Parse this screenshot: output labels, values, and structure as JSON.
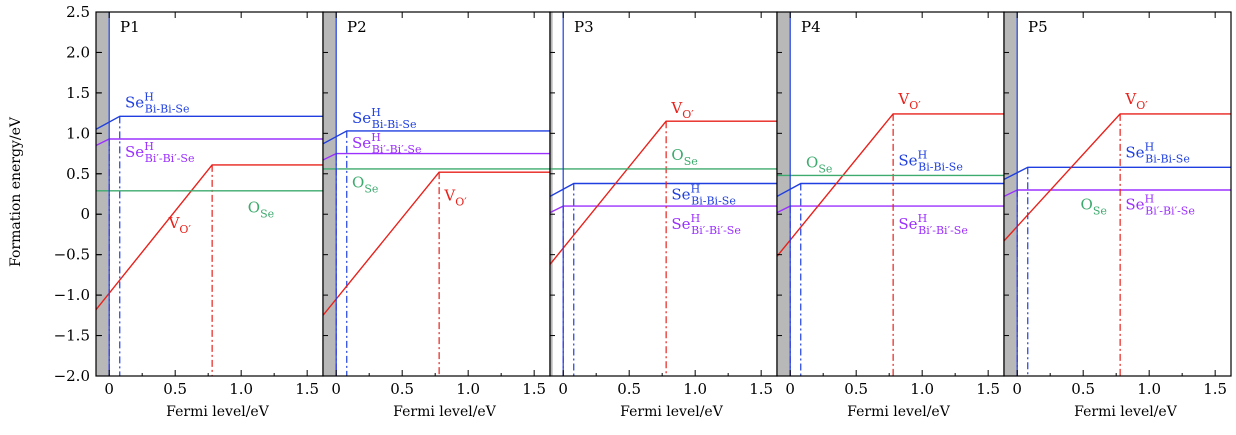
{
  "figure": {
    "ylabel": "Formation energy/eV",
    "xlabel": "Fermi level/eV"
  },
  "colors": {
    "Se_BiBiSe": "#1f3fe0",
    "Se_BiBi": "#9b30ff",
    "V_O": "#e8211b",
    "O_Se": "#3daa6e",
    "gap_shade": "#b8b8b8"
  },
  "chart_data": [
    {
      "type": "line",
      "panel": "P1",
      "xlim": [
        -0.1,
        1.62
      ],
      "ylim": [
        -2.0,
        2.5
      ],
      "xticks": [
        0,
        0.5,
        1.0,
        1.5
      ],
      "xtick_labels": [
        "0",
        "0.5",
        "1.0",
        "1.5"
      ],
      "yticks": [
        -2.0,
        -1.5,
        -1.0,
        -0.5,
        0,
        0.5,
        1.0,
        1.5,
        2.0,
        2.5
      ],
      "ytick_labels": [
        "−2.0",
        "−1.5",
        "−1.0",
        "−0.5",
        "0",
        "0.5",
        "1.0",
        "1.5",
        "2.0",
        "2.5"
      ],
      "shaded_band": [
        -0.1,
        0.0
      ],
      "series": [
        {
          "key": "Se_BiBiSe",
          "points": [
            [
              -0.1,
              1.05
            ],
            [
              0.08,
              1.21
            ],
            [
              1.62,
              1.21
            ]
          ],
          "transition": 0.08
        },
        {
          "key": "Se_BiBi",
          "points": [
            [
              -0.1,
              0.85
            ],
            [
              0.0,
              0.93
            ],
            [
              1.62,
              0.93
            ]
          ],
          "transition": 0.0
        },
        {
          "key": "V_O",
          "points": [
            [
              -0.1,
              -1.18
            ],
            [
              0.78,
              0.61
            ],
            [
              1.62,
              0.61
            ]
          ],
          "transition": 0.78
        },
        {
          "key": "O_Se",
          "points": [
            [
              -0.1,
              0.29
            ],
            [
              1.62,
              0.29
            ]
          ]
        }
      ],
      "labels": [
        {
          "text": "Se",
          "sup": "H",
          "sub": "Bi-Bi-Se",
          "key": "Se_BiBiSe",
          "at": [
            0.12,
            1.32
          ]
        },
        {
          "text": "Se",
          "sup": "H",
          "sub": "Bi′-Bi′-Se",
          "key": "Se_BiBi",
          "at": [
            0.12,
            0.71
          ]
        },
        {
          "text": "V",
          "sub": "O′",
          "key": "V_O",
          "at": [
            0.45,
            -0.17
          ]
        },
        {
          "text": "O",
          "sub": "Se",
          "key": "O_Se",
          "at": [
            1.05,
            0.02
          ]
        }
      ]
    },
    {
      "type": "line",
      "panel": "P2",
      "xlim": [
        -0.1,
        1.62
      ],
      "ylim": [
        -2.0,
        2.5
      ],
      "xticks": [
        0,
        0.5,
        1.0,
        1.5
      ],
      "xtick_labels": [
        "0",
        "0.5",
        "1.0",
        "1.5"
      ],
      "shaded_band": [
        -0.1,
        0.0
      ],
      "series": [
        {
          "key": "Se_BiBiSe",
          "points": [
            [
              -0.1,
              0.87
            ],
            [
              0.08,
              1.03
            ],
            [
              1.62,
              1.03
            ]
          ],
          "transition": 0.08
        },
        {
          "key": "Se_BiBi",
          "points": [
            [
              -0.1,
              0.67
            ],
            [
              0.0,
              0.75
            ],
            [
              1.62,
              0.75
            ]
          ],
          "transition": 0.0
        },
        {
          "key": "V_O",
          "points": [
            [
              -0.1,
              -1.25
            ],
            [
              0.78,
              0.52
            ],
            [
              1.62,
              0.52
            ]
          ],
          "transition": 0.78
        },
        {
          "key": "O_Se",
          "points": [
            [
              -0.1,
              0.56
            ],
            [
              1.62,
              0.56
            ]
          ]
        }
      ],
      "labels": [
        {
          "text": "Se",
          "sup": "H",
          "sub": "Bi-Bi-Se",
          "key": "Se_BiBiSe",
          "at": [
            0.12,
            1.13
          ]
        },
        {
          "text": "Se",
          "sup": "H",
          "sub": "Bi′-Bi′-Se",
          "key": "Se_BiBi",
          "at": [
            0.12,
            0.82
          ]
        },
        {
          "text": "V",
          "sub": "O′",
          "key": "V_O",
          "at": [
            0.82,
            0.17
          ]
        },
        {
          "text": "O",
          "sub": "Se",
          "key": "O_Se",
          "at": [
            0.12,
            0.33
          ]
        }
      ]
    },
    {
      "type": "line",
      "panel": "P3",
      "xlim": [
        -0.1,
        1.62
      ],
      "ylim": [
        -2.0,
        2.5
      ],
      "xticks": [
        0,
        0.5,
        1.0,
        1.5
      ],
      "xtick_labels": [
        "0",
        "0.5",
        "1.0",
        "1.5"
      ],
      "shaded_band": [
        -0.1,
        -0.08
      ],
      "series": [
        {
          "key": "Se_BiBiSe",
          "points": [
            [
              -0.1,
              0.22
            ],
            [
              0.08,
              0.38
            ],
            [
              1.62,
              0.38
            ]
          ],
          "transition": 0.08
        },
        {
          "key": "Se_BiBi",
          "points": [
            [
              -0.1,
              0.02
            ],
            [
              0.0,
              0.1
            ],
            [
              1.62,
              0.1
            ]
          ],
          "transition": 0.0
        },
        {
          "key": "V_O",
          "points": [
            [
              -0.1,
              -0.62
            ],
            [
              0.78,
              1.15
            ],
            [
              1.62,
              1.15
            ]
          ],
          "transition": 0.78
        },
        {
          "key": "O_Se",
          "points": [
            [
              -0.1,
              0.56
            ],
            [
              1.62,
              0.56
            ]
          ]
        }
      ],
      "labels": [
        {
          "text": "V",
          "sub": "O′",
          "key": "V_O",
          "at": [
            0.82,
            1.25
          ]
        },
        {
          "text": "O",
          "sub": "Se",
          "key": "O_Se",
          "at": [
            0.82,
            0.67
          ]
        },
        {
          "text": "Se",
          "sup": "H",
          "sub": "Bi-Bi-Se",
          "key": "Se_BiBiSe",
          "at": [
            0.82,
            0.18
          ]
        },
        {
          "text": "Se",
          "sup": "H",
          "sub": "Bi′-Bi′-Se",
          "key": "Se_BiBi",
          "at": [
            0.82,
            -0.18
          ]
        }
      ]
    },
    {
      "type": "line",
      "panel": "P4",
      "xlim": [
        -0.1,
        1.62
      ],
      "ylim": [
        -2.0,
        2.5
      ],
      "xticks": [
        0,
        0.5,
        1.0,
        1.5
      ],
      "xtick_labels": [
        "0",
        "0.5",
        "1.0",
        "1.5"
      ],
      "shaded_band": [
        -0.1,
        0.0
      ],
      "series": [
        {
          "key": "Se_BiBiSe",
          "points": [
            [
              -0.1,
              0.22
            ],
            [
              0.08,
              0.38
            ],
            [
              1.62,
              0.38
            ]
          ],
          "transition": 0.08
        },
        {
          "key": "Se_BiBi",
          "points": [
            [
              -0.1,
              0.02
            ],
            [
              0.0,
              0.1
            ],
            [
              1.62,
              0.1
            ]
          ],
          "transition": 0.0
        },
        {
          "key": "V_O",
          "points": [
            [
              -0.1,
              -0.52
            ],
            [
              0.78,
              1.24
            ],
            [
              1.62,
              1.24
            ]
          ],
          "transition": 0.78
        },
        {
          "key": "O_Se",
          "points": [
            [
              -0.1,
              0.48
            ],
            [
              1.62,
              0.48
            ]
          ]
        }
      ],
      "labels": [
        {
          "text": "V",
          "sub": "O′",
          "key": "V_O",
          "at": [
            0.82,
            1.36
          ]
        },
        {
          "text": "O",
          "sub": "Se",
          "key": "O_Se",
          "at": [
            0.12,
            0.58
          ]
        },
        {
          "text": "Se",
          "sup": "H",
          "sub": "Bi-Bi-Se",
          "key": "Se_BiBiSe",
          "at": [
            0.82,
            0.6
          ]
        },
        {
          "text": "Se",
          "sup": "H",
          "sub": "Bi′-Bi′-Se",
          "key": "Se_BiBi",
          "at": [
            0.82,
            -0.18
          ]
        }
      ]
    },
    {
      "type": "line",
      "panel": "P5",
      "xlim": [
        -0.1,
        1.62
      ],
      "ylim": [
        -2.0,
        2.5
      ],
      "xticks": [
        0,
        0.5,
        1.0,
        1.5
      ],
      "xtick_labels": [
        "0",
        "0.5",
        "1.0",
        "1.5"
      ],
      "shaded_band": [
        -0.1,
        0.0
      ],
      "series": [
        {
          "key": "Se_BiBiSe",
          "points": [
            [
              -0.1,
              0.43
            ],
            [
              0.08,
              0.58
            ],
            [
              1.62,
              0.58
            ]
          ],
          "transition": 0.08
        },
        {
          "key": "Se_BiBi",
          "points": [
            [
              -0.1,
              0.22
            ],
            [
              0.0,
              0.3
            ],
            [
              1.62,
              0.3
            ]
          ],
          "transition": 0.0
        },
        {
          "key": "V_O",
          "points": [
            [
              -0.1,
              -0.33
            ],
            [
              0.78,
              1.24
            ],
            [
              1.62,
              1.24
            ]
          ],
          "transition": 0.78
        },
        {
          "key": "O_Se",
          "points": []
        }
      ],
      "labels": [
        {
          "text": "V",
          "sub": "O′",
          "key": "V_O",
          "at": [
            0.82,
            1.36
          ]
        },
        {
          "text": "Se",
          "sup": "H",
          "sub": "Bi-Bi-Se",
          "key": "Se_BiBiSe",
          "at": [
            0.82,
            0.7
          ]
        },
        {
          "text": "Se",
          "sup": "H",
          "sub": "Bi′-Bi′-Se",
          "key": "Se_BiBi",
          "at": [
            0.82,
            0.06
          ]
        },
        {
          "text": "O",
          "sub": "Se",
          "key": "O_Se",
          "at": [
            0.48,
            0.06
          ]
        }
      ]
    }
  ]
}
